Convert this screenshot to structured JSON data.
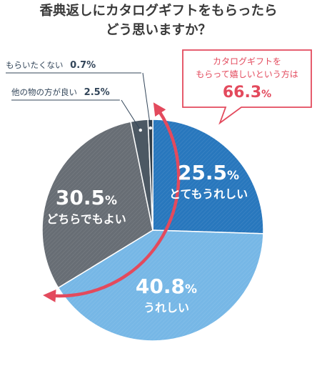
{
  "title": {
    "line1": "香典返しにカタログギフトをもらったら",
    "line2": "どう思いますか？"
  },
  "callout": {
    "line1": "カタログギフトを",
    "line2": "もらって嬉しいという方は",
    "value_num": "66.3",
    "value_unit": "%"
  },
  "colors": {
    "totemo": "#2877bd",
    "ureshii": "#76b7e6",
    "dochira": "#676d74",
    "hokano": "#4c5863",
    "moraitakunai": "#2f3d49",
    "accent": "#e34a5d",
    "callout_border": "#e34a5d",
    "label_dark": "#33465a"
  },
  "chart_data": {
    "type": "pie",
    "title": "香典返しにカタログギフトをもらったらどう思いますか？",
    "unit": "%",
    "slices": [
      {
        "label": "とてもうれしい",
        "value": 25.5,
        "num": "25.5",
        "color": "#2877bd",
        "hatched": true
      },
      {
        "label": "うれしい",
        "value": 40.8,
        "num": "40.8",
        "color": "#76b7e6",
        "hatched": true
      },
      {
        "label": "どちらでもよい",
        "value": 30.5,
        "num": "30.5",
        "color": "#676d74",
        "hatched": true
      },
      {
        "label": "他の物の方が良い",
        "value": 2.5,
        "num": "2.5",
        "color": "#4c5863",
        "hatched": false
      },
      {
        "label": "もらいたくない",
        "value": 0.7,
        "num": "0.7",
        "color": "#2f3d49",
        "hatched": false
      }
    ],
    "highlight": {
      "label": "カタログギフトをもらって嬉しいという方は",
      "value": 66.3
    }
  }
}
